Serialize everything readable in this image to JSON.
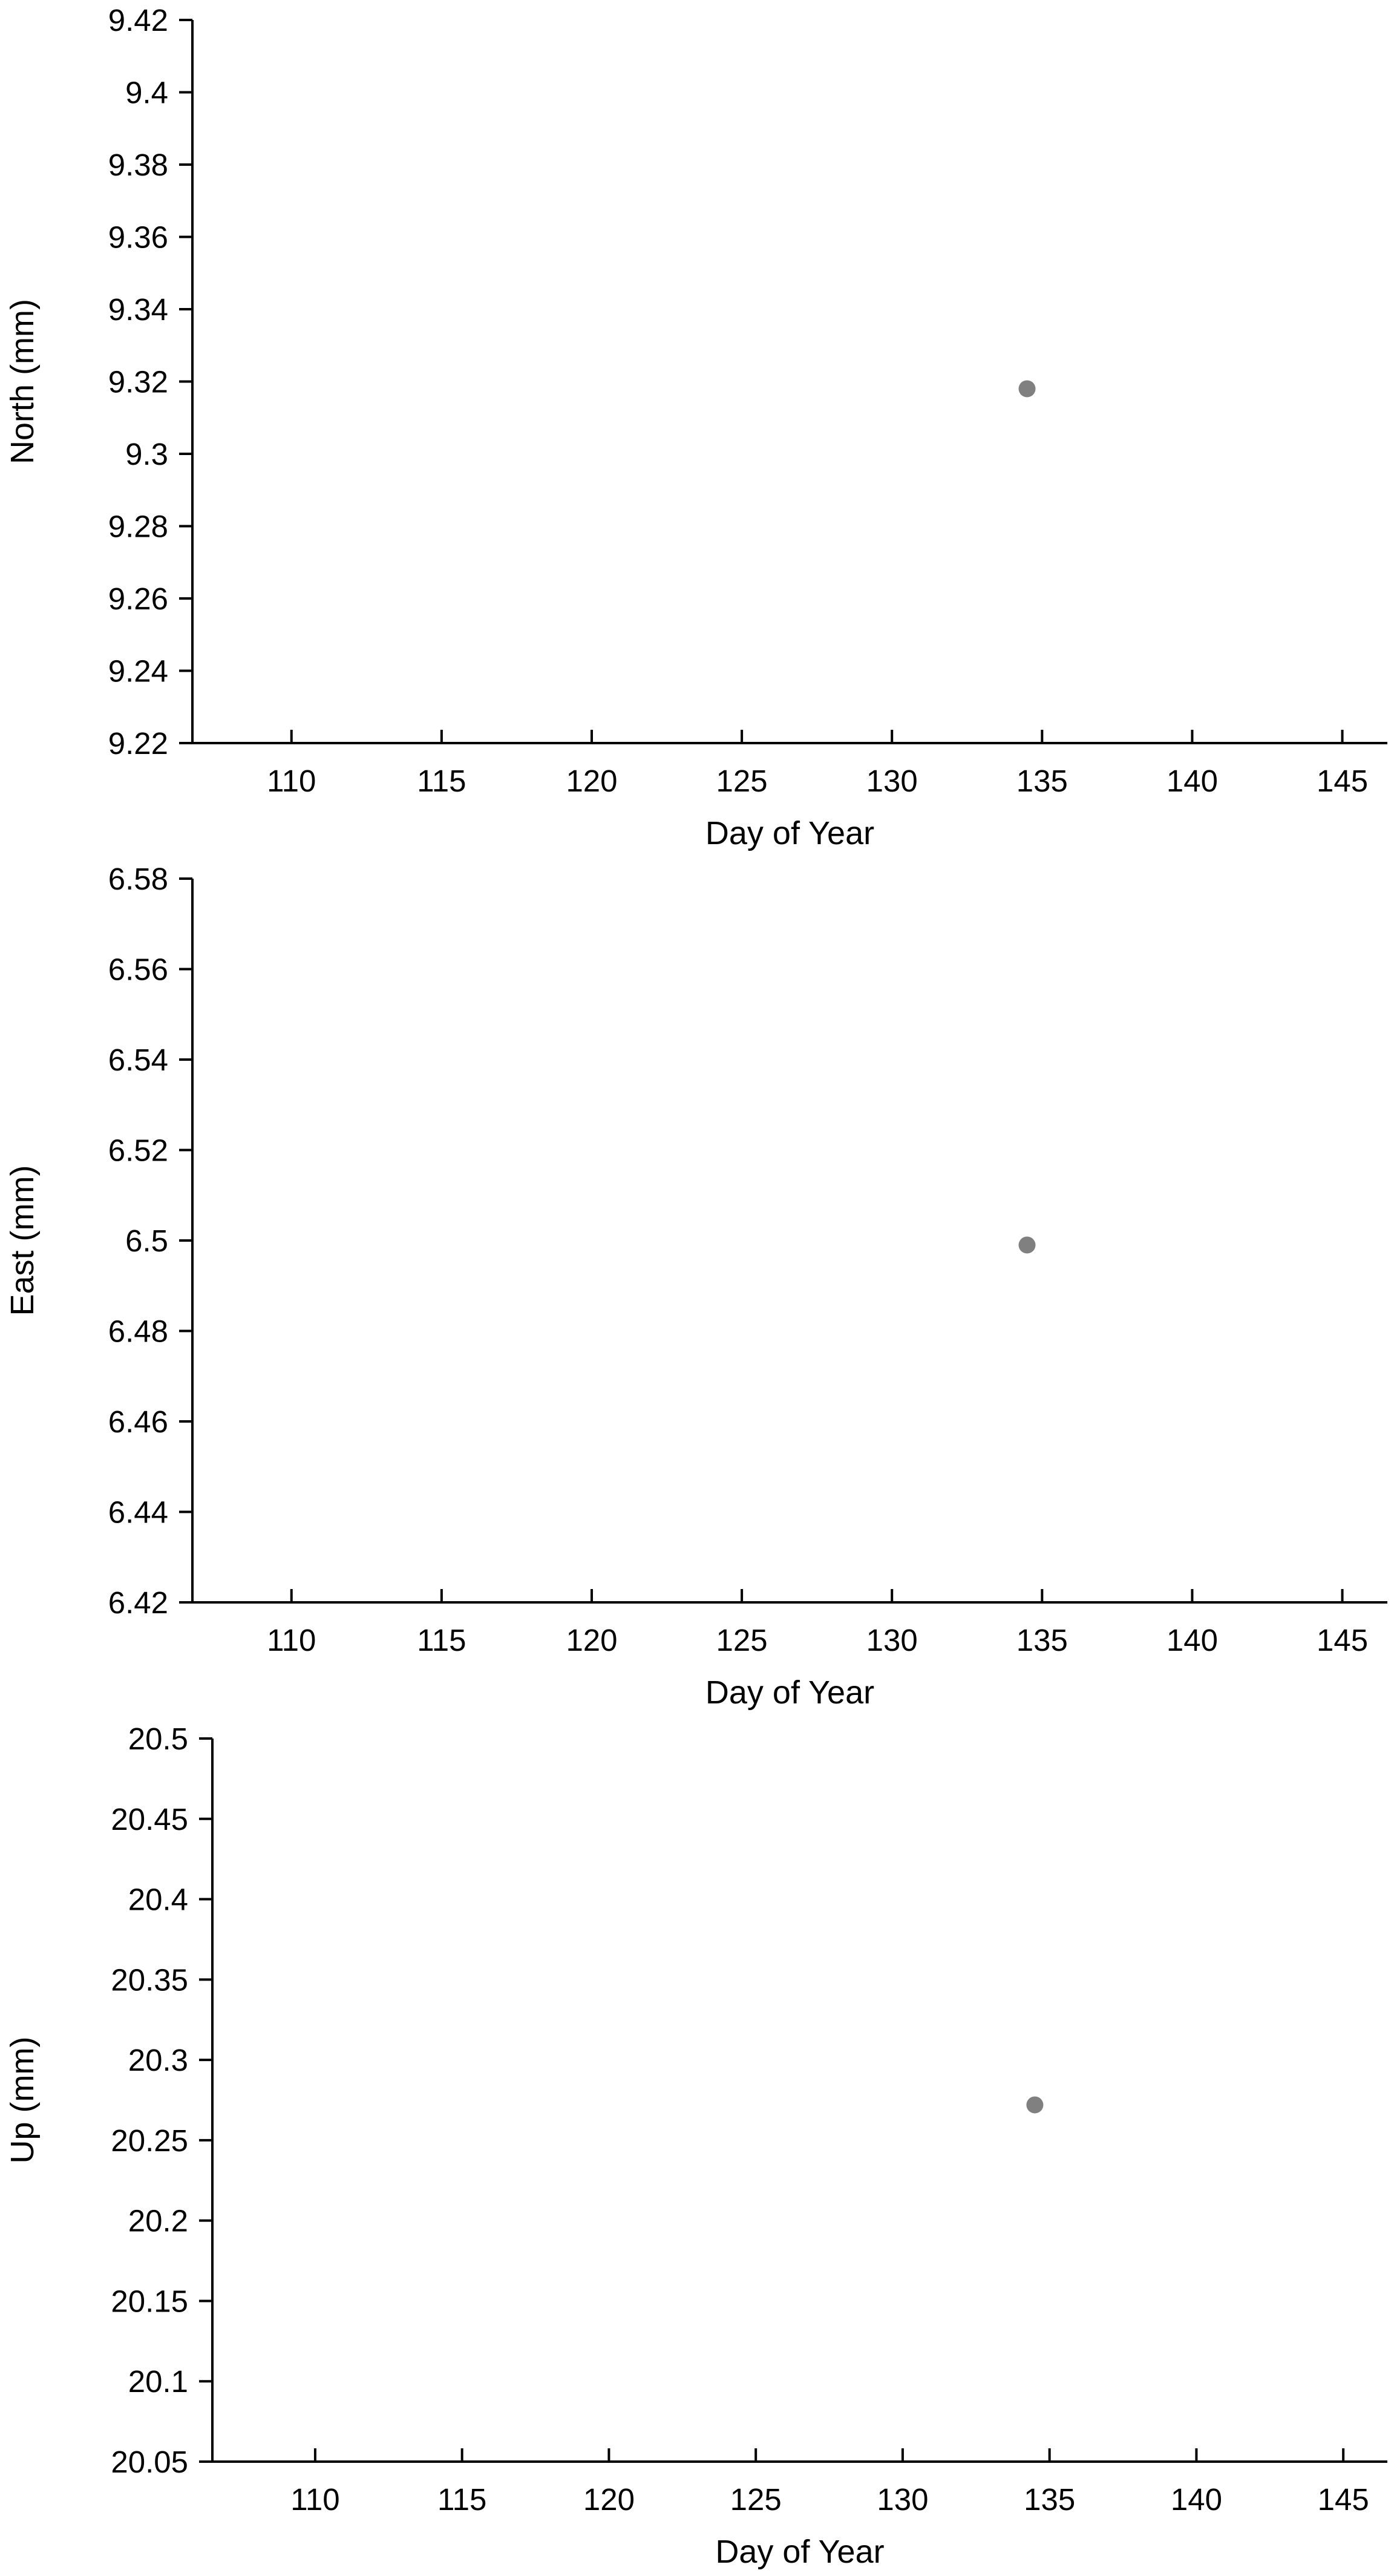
{
  "chart_data": [
    {
      "type": "scatter",
      "xlabel": "Day of Year",
      "ylabel": "North (mm)",
      "xlim": [
        106.7,
        146.5
      ],
      "ylim": [
        9.22,
        9.42
      ],
      "x_ticks": [
        "110",
        "115",
        "120",
        "125",
        "130",
        "135",
        "140",
        "145"
      ],
      "y_ticks": [
        "9.22",
        "9.24",
        "9.26",
        "9.28",
        "9.3",
        "9.32",
        "9.34",
        "9.36",
        "9.38",
        "9.4",
        "9.42"
      ],
      "points": [
        {
          "x": 134.5,
          "y": 9.318
        }
      ],
      "marker_color": "#808080"
    },
    {
      "type": "scatter",
      "xlabel": "Day of Year",
      "ylabel": "East (mm)",
      "xlim": [
        106.7,
        146.5
      ],
      "ylim": [
        6.42,
        6.58
      ],
      "x_ticks": [
        "110",
        "115",
        "120",
        "125",
        "130",
        "135",
        "140",
        "145"
      ],
      "y_ticks": [
        "6.42",
        "6.44",
        "6.46",
        "6.48",
        "6.5",
        "6.52",
        "6.54",
        "6.56",
        "6.58"
      ],
      "points": [
        {
          "x": 134.5,
          "y": 6.499
        }
      ],
      "marker_color": "#808080"
    },
    {
      "type": "scatter",
      "xlabel": "Day of Year",
      "ylabel": "Up (mm)",
      "xlim": [
        106.5,
        146.5
      ],
      "ylim": [
        20.05,
        20.5
      ],
      "x_ticks": [
        "110",
        "115",
        "120",
        "125",
        "130",
        "135",
        "140",
        "145"
      ],
      "y_ticks": [
        "20.05",
        "20.1",
        "20.15",
        "20.2",
        "20.25",
        "20.3",
        "20.35",
        "20.4",
        "20.45",
        "20.5"
      ],
      "points": [
        {
          "x": 134.5,
          "y": 20.272
        }
      ],
      "marker_color": "#808080"
    }
  ]
}
